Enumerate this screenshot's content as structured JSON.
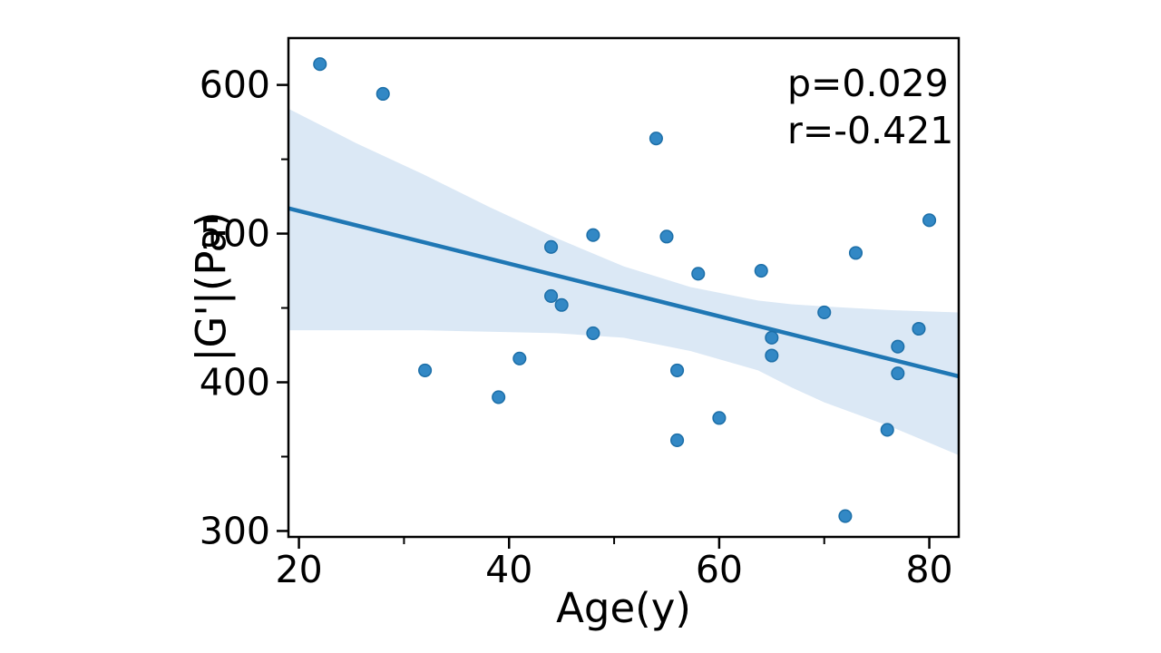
{
  "chart_data": {
    "type": "scatter",
    "title": "",
    "xlabel": "Age(y)",
    "ylabel": "|G'|(Pa)",
    "annotation": {
      "line1": "p=0.029",
      "line2": "r=-0.421"
    },
    "stats": {
      "p_value": "0.029",
      "r_value": "-0.421"
    },
    "xlim": [
      19.0,
      82.8
    ],
    "ylim": [
      296.0,
      631.5
    ],
    "xticks_major": [
      20,
      40,
      60,
      80
    ],
    "xticks_minor": [
      30,
      50,
      70
    ],
    "yticks_major": [
      300,
      400,
      500,
      600
    ],
    "yticks_minor": [
      350,
      450,
      550
    ],
    "grid": "off",
    "legend": "none",
    "points": [
      [
        22,
        614
      ],
      [
        28,
        594
      ],
      [
        54,
        564
      ],
      [
        44,
        491
      ],
      [
        48,
        499
      ],
      [
        55,
        498
      ],
      [
        58,
        473
      ],
      [
        44,
        458
      ],
      [
        45,
        452
      ],
      [
        48,
        433
      ],
      [
        41,
        416
      ],
      [
        56,
        408
      ],
      [
        32,
        408
      ],
      [
        39,
        390
      ],
      [
        60,
        376
      ],
      [
        56,
        361
      ],
      [
        64,
        475
      ],
      [
        65,
        430
      ],
      [
        65,
        418
      ],
      [
        70,
        447
      ],
      [
        73,
        487
      ],
      [
        77,
        424
      ],
      [
        79,
        436
      ],
      [
        77,
        406
      ],
      [
        76,
        368
      ],
      [
        80,
        509
      ],
      [
        72,
        310
      ]
    ],
    "regression_line": {
      "x": [
        19.0,
        82.8
      ],
      "y": [
        517,
        404
      ]
    },
    "ci_band": {
      "x": [
        19.0,
        25.4,
        31.8,
        38.1,
        44.5,
        50.9,
        57.3,
        63.7,
        66.9,
        70.0,
        76.4,
        82.8
      ],
      "upper": [
        584,
        561,
        540,
        518,
        497,
        478,
        464,
        455,
        452.5,
        451,
        448.5,
        447
      ],
      "lower": [
        435,
        435,
        435,
        434,
        433,
        430,
        421,
        408,
        396.5,
        386.5,
        370,
        351
      ]
    },
    "colors": {
      "point_fill": "#3288c5",
      "point_edge": "#1d6fa8",
      "line": "#1f77b4",
      "band": "#dbe8f5",
      "axis": "#000000",
      "background": "#ffffff"
    }
  }
}
